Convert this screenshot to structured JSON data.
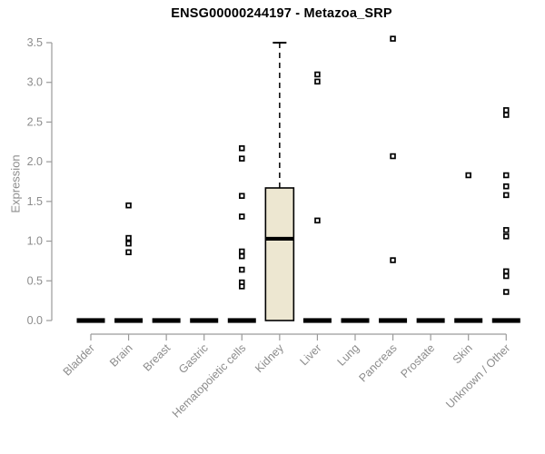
{
  "title": "ENSG00000244197 - Metazoa_SRP",
  "chart_data": {
    "type": "boxplot",
    "title": "ENSG00000244197 - Metazoa_SRP",
    "xlabel": "",
    "ylabel": "Expression",
    "ylim": [
      0.0,
      3.5
    ],
    "yticks": [
      0.0,
      0.5,
      1.0,
      1.5,
      2.0,
      2.5,
      3.0,
      3.5
    ],
    "grid": false,
    "legend": false,
    "categories": [
      "Bladder",
      "Brain",
      "Breast",
      "Gastric",
      "Hematopoietic cells",
      "Kidney",
      "Liver",
      "Lung",
      "Pancreas",
      "Prostate",
      "Skin",
      "Unknown / Other"
    ],
    "boxes": [
      {
        "category": "Bladder",
        "whisker_low": 0,
        "q1": 0,
        "median": 0,
        "q3": 0,
        "whisker_high": 0,
        "outliers": []
      },
      {
        "category": "Brain",
        "whisker_low": 0,
        "q1": 0,
        "median": 0,
        "q3": 0,
        "whisker_high": 0,
        "outliers": [
          1.45,
          1.04,
          0.97,
          0.86
        ]
      },
      {
        "category": "Breast",
        "whisker_low": 0,
        "q1": 0,
        "median": 0,
        "q3": 0,
        "whisker_high": 0,
        "outliers": []
      },
      {
        "category": "Gastric",
        "whisker_low": 0,
        "q1": 0,
        "median": 0,
        "q3": 0,
        "whisker_high": 0,
        "outliers": []
      },
      {
        "category": "Hematopoietic cells",
        "whisker_low": 0,
        "q1": 0,
        "median": 0,
        "q3": 0,
        "whisker_high": 0,
        "outliers": [
          2.17,
          2.04,
          1.57,
          1.31,
          0.87,
          0.81,
          0.64,
          0.48,
          0.43
        ]
      },
      {
        "category": "Kidney",
        "whisker_low": 0,
        "q1": 0,
        "median": 1.03,
        "q3": 1.67,
        "whisker_high": 3.5,
        "outliers": []
      },
      {
        "category": "Liver",
        "whisker_low": 0,
        "q1": 0,
        "median": 0,
        "q3": 0,
        "whisker_high": 0,
        "outliers": [
          3.1,
          3.01,
          1.26
        ]
      },
      {
        "category": "Lung",
        "whisker_low": 0,
        "q1": 0,
        "median": 0,
        "q3": 0,
        "whisker_high": 0,
        "outliers": []
      },
      {
        "category": "Pancreas",
        "whisker_low": 0,
        "q1": 0,
        "median": 0,
        "q3": 0,
        "whisker_high": 0,
        "outliers": [
          3.55,
          2.07,
          0.76
        ]
      },
      {
        "category": "Prostate",
        "whisker_low": 0,
        "q1": 0,
        "median": 0,
        "q3": 0,
        "whisker_high": 0,
        "outliers": []
      },
      {
        "category": "Skin",
        "whisker_low": 0,
        "q1": 0,
        "median": 0,
        "q3": 0,
        "whisker_high": 0,
        "outliers": [
          1.83
        ]
      },
      {
        "category": "Unknown / Other",
        "whisker_low": 0,
        "q1": 0,
        "median": 0,
        "q3": 0,
        "whisker_high": 0,
        "outliers": [
          2.65,
          2.59,
          1.83,
          1.69,
          1.58,
          1.14,
          1.06,
          0.62,
          0.56,
          0.36
        ]
      }
    ],
    "colors": {
      "background": "#ffffff",
      "box_fill": "#ede7d1",
      "box_border": "#000000",
      "median": "#000000",
      "whisker": "#000000",
      "outlier_stroke": "#000000",
      "outlier_fill": "#ffffff",
      "axis_line": "#9a9a9a",
      "tick_label": "#8c8c8c",
      "title": "#000000"
    }
  }
}
